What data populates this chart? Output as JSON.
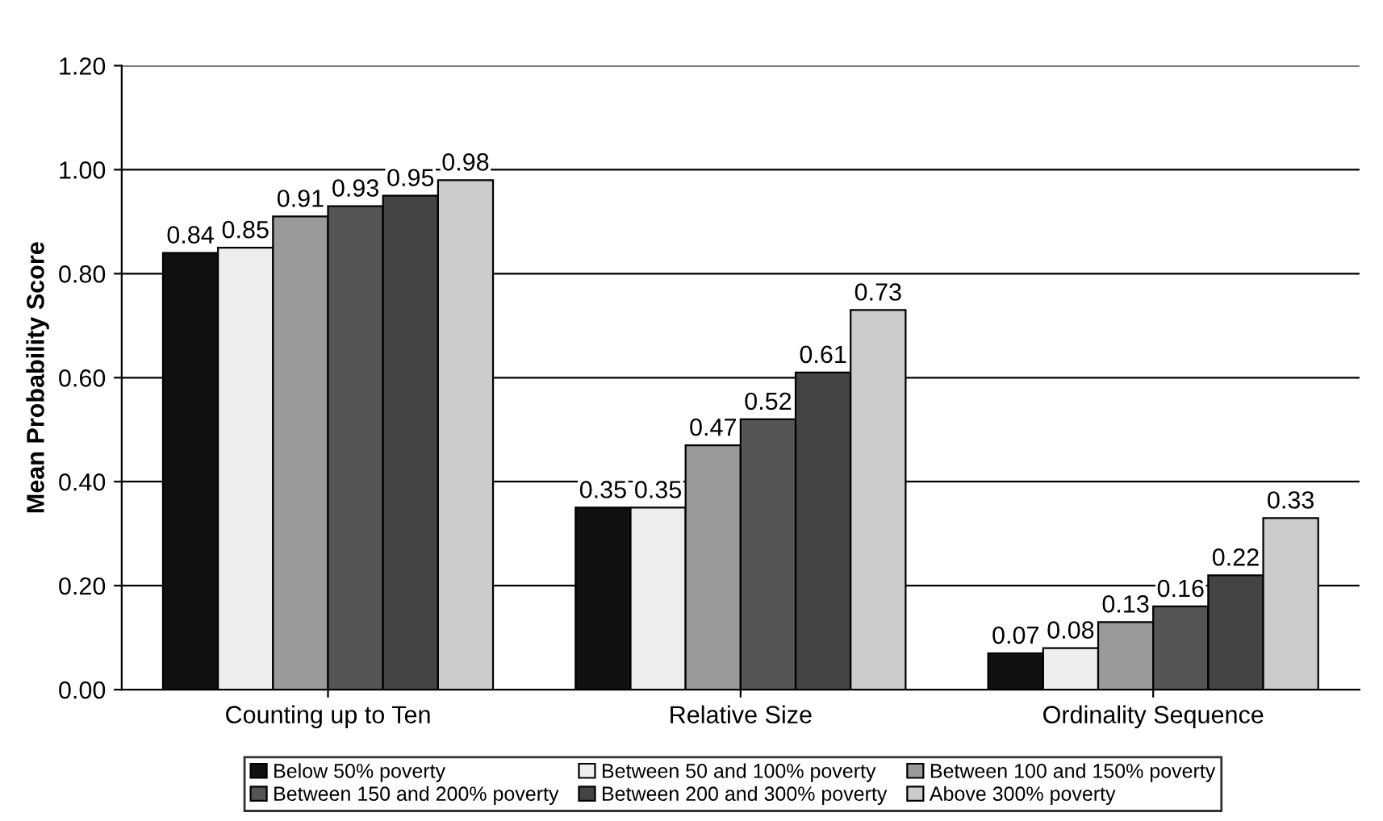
{
  "chart_data": {
    "type": "bar",
    "ylabel": "Mean Probability Score",
    "categories": [
      "Counting up to Ten",
      "Relative Size",
      "Ordinality Sequence"
    ],
    "series": [
      {
        "name": "Below 50% poverty",
        "color": "#111111",
        "values": [
          0.84,
          0.35,
          0.07
        ]
      },
      {
        "name": "Between 50 and 100% poverty",
        "color": "#eeeeee",
        "values": [
          0.85,
          0.35,
          0.08
        ]
      },
      {
        "name": "Between 100 and 150% poverty",
        "color": "#9a9a9a",
        "values": [
          0.91,
          0.47,
          0.13
        ]
      },
      {
        "name": "Between 150 and 200% poverty",
        "color": "#555555",
        "values": [
          0.93,
          0.52,
          0.16
        ]
      },
      {
        "name": "Between 200 and 300% poverty",
        "color": "#444444",
        "values": [
          0.95,
          0.61,
          0.22
        ]
      },
      {
        "name": "Above 300% poverty",
        "color": "#cccccc",
        "values": [
          0.98,
          0.73,
          0.33
        ]
      }
    ],
    "ylim": [
      0,
      1.2
    ],
    "yticks": [
      {
        "value": 0,
        "label": "0.00"
      },
      {
        "value": 0.2,
        "label": "0.20"
      },
      {
        "value": 0.4,
        "label": "0.40"
      },
      {
        "value": 0.6,
        "label": "0.60"
      },
      {
        "value": 0.8,
        "label": "0.80"
      },
      {
        "value": 1.0,
        "label": "1.00"
      },
      {
        "value": 1.2,
        "label": "1.20"
      }
    ],
    "grid": "y",
    "legend": "bottom",
    "data_labels": true
  }
}
